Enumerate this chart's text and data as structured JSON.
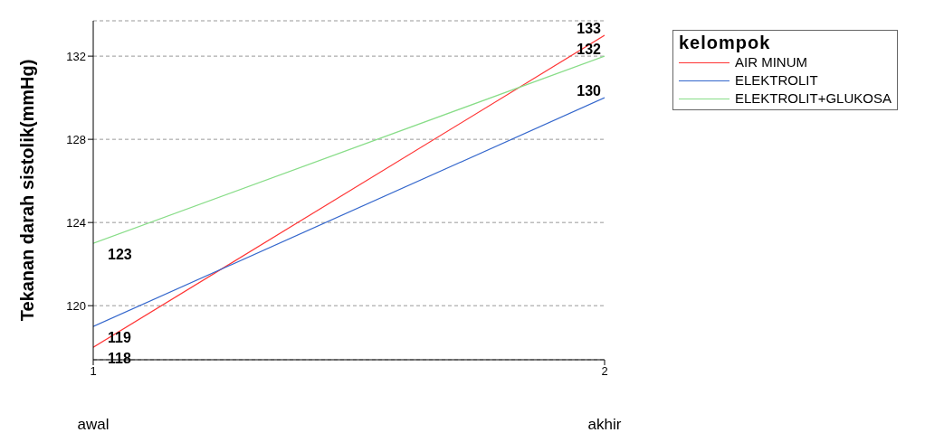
{
  "chart_data": {
    "type": "line",
    "x": [
      1,
      2
    ],
    "xlim": [
      1,
      2
    ],
    "xticks": [
      1,
      2
    ],
    "ylim": [
      117.4,
      133.7
    ],
    "yticks": [
      120,
      124,
      128,
      132
    ],
    "ylabel": "Tekanan darah sistolik(mmHg)",
    "legend_title": "kelompok",
    "legend": "top right",
    "grid": "y",
    "data_labels": true,
    "annotations": [
      "awal",
      "akhir"
    ],
    "series": [
      {
        "name": "AIR MINUM",
        "color": "#ff3333",
        "values": [
          118,
          133
        ]
      },
      {
        "name": "ELEKTROLIT",
        "color": "#3366cc",
        "values": [
          119,
          130
        ]
      },
      {
        "name": "ELEKTROLIT+GLUKOSA",
        "color": "#88dd88",
        "values": [
          123,
          132
        ]
      }
    ]
  }
}
